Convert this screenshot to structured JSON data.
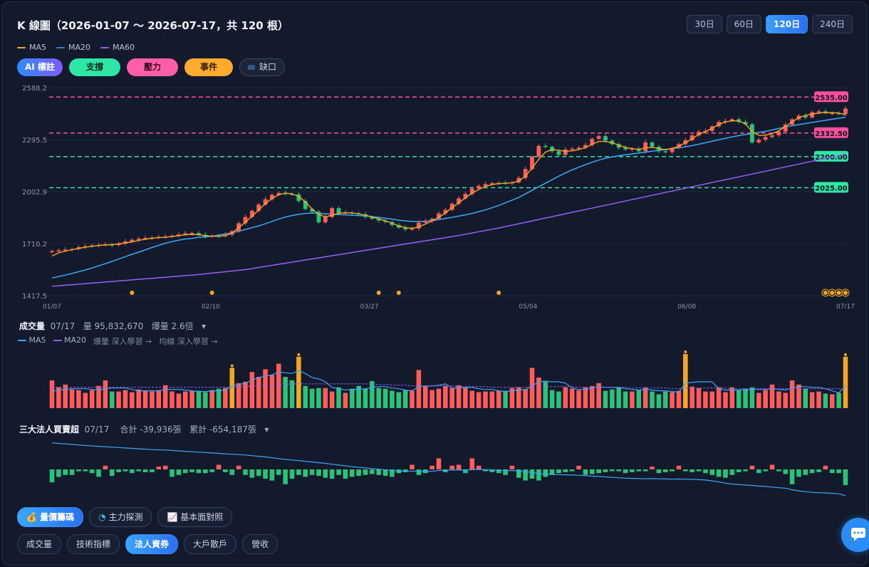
{
  "header": {
    "title": "K 線圖（2026-01-07 ～ 2026-07-17，共 120 根）"
  },
  "periods": [
    "30日",
    "60日",
    "120日",
    "240日"
  ],
  "active_period": "120日",
  "ma_legend": [
    {
      "label": "MA5",
      "color": "#f5a623"
    },
    {
      "label": "MA20",
      "color": "#3a7bd5"
    },
    {
      "label": "MA60",
      "color": "#9b5cff"
    }
  ],
  "overlay_chips": {
    "ai": "AI 標註",
    "support": "支撐",
    "pressure": "壓力",
    "event": "事件",
    "gap": "缺口"
  },
  "colors": {
    "up": "#ff5c5c",
    "down": "#2bc27a",
    "ma5": "#f5a623",
    "ma20": "#3aa8ff",
    "ma60": "#9b5cff",
    "pressure": "#ff4f9a",
    "support": "#2ee6a6",
    "event": "#f5a623"
  },
  "chart_data": [
    {
      "type": "candlestick",
      "title": "K 線圖（2026-01-07 ～ 2026-07-17，共 120 根）",
      "start_date": "2026-01-07",
      "end_date": "2026-07-17",
      "bar_count": 120,
      "ylim": [
        1417.5,
        2588.2
      ],
      "y_ticks": [
        "2588.2",
        "2295.5",
        "2002.9",
        "1710.2",
        "1417.5"
      ],
      "x_ticks": [
        "01/07",
        "02/10",
        "03/27",
        "05/04",
        "06/08",
        "07/17"
      ],
      "close": [
        1668,
        1672,
        1676,
        1680,
        1690,
        1695,
        1700,
        1702,
        1705,
        1702,
        1710,
        1722,
        1732,
        1738,
        1742,
        1745,
        1748,
        1750,
        1755,
        1762,
        1768,
        1770,
        1760,
        1750,
        1754,
        1752,
        1760,
        1780,
        1825,
        1860,
        1895,
        1930,
        1960,
        1985,
        1995,
        1990,
        1988,
        1950,
        1905,
        1890,
        1830,
        1860,
        1910,
        1880,
        1885,
        1880,
        1875,
        1860,
        1850,
        1840,
        1832,
        1815,
        1800,
        1790,
        1795,
        1828,
        1836,
        1850,
        1880,
        1900,
        1935,
        1965,
        1990,
        2020,
        2035,
        2045,
        2050,
        2052,
        2050,
        2055,
        2080,
        2130,
        2200,
        2260,
        2255,
        2230,
        2210,
        2240,
        2245,
        2250,
        2265,
        2300,
        2315,
        2290,
        2270,
        2250,
        2240,
        2245,
        2230,
        2280,
        2255,
        2230,
        2225,
        2248,
        2270,
        2292,
        2320,
        2340,
        2345,
        2370,
        2395,
        2400,
        2410,
        2395,
        2382,
        2280,
        2295,
        2310,
        2320,
        2340,
        2380,
        2410,
        2430,
        2420,
        2450,
        2455,
        2445,
        2445,
        2440,
        2470
      ],
      "ma5": [
        1640,
        1658,
        1668,
        1676,
        1683,
        1690,
        1695,
        1700,
        1703,
        1705,
        1708,
        1714,
        1720,
        1728,
        1735,
        1740,
        1744,
        1746,
        1750,
        1755,
        1760,
        1762,
        1760,
        1755,
        1752,
        1752,
        1755,
        1770,
        1800,
        1830,
        1865,
        1900,
        1935,
        1965,
        1985,
        1995,
        1990,
        1975,
        1945,
        1905,
        1875,
        1860,
        1870,
        1880,
        1885,
        1883,
        1878,
        1870,
        1860,
        1850,
        1838,
        1825,
        1810,
        1800,
        1796,
        1805,
        1820,
        1838,
        1858,
        1882,
        1912,
        1940,
        1968,
        1995,
        2015,
        2032,
        2042,
        2048,
        2050,
        2052,
        2062,
        2090,
        2135,
        2185,
        2225,
        2240,
        2235,
        2230,
        2232,
        2240,
        2250,
        2270,
        2285,
        2285,
        2278,
        2265,
        2252,
        2245,
        2240,
        2250,
        2252,
        2245,
        2238,
        2245,
        2258,
        2278,
        2300,
        2325,
        2340,
        2360,
        2380,
        2395,
        2402,
        2400,
        2385,
        2340,
        2320,
        2320,
        2330,
        2345,
        2370,
        2395,
        2420,
        2432,
        2440,
        2445,
        2448,
        2447,
        2445,
        2435
      ],
      "ma20": [
        1517,
        1525,
        1533,
        1542,
        1552,
        1562,
        1573,
        1585,
        1597,
        1610,
        1623,
        1637,
        1650,
        1662,
        1675,
        1688,
        1700,
        1712,
        1722,
        1730,
        1736,
        1740,
        1745,
        1748,
        1752,
        1758,
        1765,
        1772,
        1780,
        1790,
        1800,
        1810,
        1822,
        1835,
        1848,
        1860,
        1868,
        1875,
        1880,
        1882,
        1880,
        1878,
        1876,
        1874,
        1872,
        1870,
        1868,
        1866,
        1862,
        1858,
        1853,
        1848,
        1842,
        1838,
        1835,
        1835,
        1836,
        1840,
        1845,
        1852,
        1858,
        1865,
        1872,
        1880,
        1890,
        1900,
        1912,
        1925,
        1940,
        1955,
        1970,
        1990,
        2010,
        2030,
        2050,
        2070,
        2090,
        2108,
        2125,
        2140,
        2155,
        2168,
        2180,
        2190,
        2198,
        2205,
        2210,
        2215,
        2220,
        2225,
        2230,
        2235,
        2240,
        2245,
        2250,
        2255,
        2262,
        2270,
        2278,
        2286,
        2295,
        2303,
        2311,
        2318,
        2324,
        2330,
        2336,
        2342,
        2350,
        2358,
        2366,
        2374,
        2380,
        2386,
        2392,
        2398,
        2404,
        2410,
        2416,
        2422
      ],
      "ma60": [
        1470,
        1473,
        1476,
        1479,
        1482,
        1485,
        1488,
        1491,
        1494,
        1497,
        1500,
        1503,
        1506,
        1509,
        1512,
        1515,
        1518,
        1521,
        1524,
        1527,
        1530,
        1533,
        1536,
        1540,
        1544,
        1548,
        1552,
        1556,
        1560,
        1564,
        1570,
        1576,
        1582,
        1588,
        1594,
        1600,
        1606,
        1612,
        1618,
        1624,
        1630,
        1636,
        1642,
        1648,
        1654,
        1660,
        1666,
        1672,
        1678,
        1684,
        1690,
        1696,
        1702,
        1708,
        1714,
        1720,
        1726,
        1732,
        1738,
        1744,
        1750,
        1756,
        1763,
        1770,
        1777,
        1784,
        1791,
        1798,
        1806,
        1814,
        1822,
        1830,
        1838,
        1846,
        1854,
        1862,
        1870,
        1878,
        1886,
        1894,
        1902,
        1910,
        1918,
        1926,
        1934,
        1942,
        1950,
        1958,
        1966,
        1974,
        1982,
        1990,
        1998,
        2006,
        2014,
        2022,
        2030,
        2038,
        2046,
        2054,
        2062,
        2070,
        2078,
        2086,
        2094,
        2102,
        2110,
        2118,
        2126,
        2134,
        2142,
        2150,
        2158,
        2166,
        2174,
        2182,
        2190,
        2198,
        2206,
        2214
      ],
      "pressure_lines": [
        2535.0,
        2332.5
      ],
      "support_lines": [
        2200.0,
        2025.0
      ],
      "pressure_labels": [
        "2535.00",
        "2332.50"
      ],
      "support_labels": [
        "2200.00",
        "2025.00"
      ],
      "event_markers": [
        13,
        25,
        50,
        53,
        68,
        117,
        118,
        119,
        120
      ]
    },
    {
      "type": "bar",
      "title": "成交量",
      "date": "07/17",
      "volume_text": "量 95,832,670",
      "burst_text": "爆量 2.6倍",
      "legend": [
        "MA5",
        "MA20"
      ],
      "legend_links": [
        "爆量 深入學習 →",
        "均線 深入學習 →"
      ],
      "volume": [
        40,
        30,
        34,
        27,
        26,
        22,
        26,
        32,
        40,
        24,
        24,
        26,
        23,
        27,
        25,
        24,
        26,
        33,
        24,
        21,
        24,
        25,
        25,
        23,
        26,
        28,
        29,
        58,
        36,
        38,
        52,
        45,
        56,
        48,
        64,
        45,
        40,
        74,
        32,
        28,
        29,
        29,
        24,
        30,
        22,
        28,
        32,
        28,
        39,
        29,
        28,
        25,
        23,
        26,
        25,
        55,
        32,
        26,
        28,
        32,
        29,
        33,
        30,
        25,
        23,
        24,
        24,
        25,
        25,
        29,
        30,
        27,
        58,
        44,
        38,
        26,
        24,
        30,
        28,
        26,
        30,
        32,
        36,
        25,
        27,
        30,
        24,
        24,
        26,
        30,
        24,
        20,
        24,
        23,
        25,
        78,
        31,
        29,
        24,
        24,
        30,
        23,
        30,
        26,
        28,
        30,
        22,
        26,
        34,
        24,
        22,
        40,
        34,
        28,
        23,
        24,
        21,
        20,
        22,
        74
      ],
      "vol_ma5": [
        24,
        26,
        27,
        28,
        28,
        28,
        27,
        26,
        28,
        29,
        29,
        29,
        27,
        25,
        25,
        25,
        25,
        27,
        27,
        27,
        26,
        25,
        24,
        24,
        25,
        25,
        26,
        32,
        34,
        36,
        40,
        44,
        46,
        48,
        52,
        51,
        50,
        54,
        50,
        44,
        42,
        38,
        30,
        28,
        26,
        27,
        27,
        28,
        30,
        31,
        31,
        29,
        28,
        26,
        25,
        31,
        32,
        32,
        33,
        35,
        29,
        29,
        30,
        30,
        28,
        27,
        27,
        25,
        24,
        25,
        26,
        27,
        32,
        38,
        39,
        38,
        38,
        36,
        29,
        27,
        27,
        29,
        31,
        30,
        30,
        30,
        28,
        27,
        26,
        27,
        26,
        25,
        25,
        24,
        23,
        36,
        37,
        38,
        38,
        38,
        28,
        26,
        26,
        26,
        27,
        27,
        27,
        27,
        28,
        27,
        26,
        29,
        31,
        31,
        30,
        30,
        28,
        25,
        22,
        32
      ],
      "vol_ma20": [
        30,
        30,
        30,
        30,
        30,
        30,
        30,
        30,
        30,
        30,
        30,
        30,
        30,
        30,
        30,
        30,
        30,
        30,
        30,
        30,
        30,
        30,
        30,
        30,
        30,
        30,
        30,
        30,
        31,
        31,
        32,
        32,
        33,
        33,
        34,
        34,
        35,
        35,
        35,
        35,
        35,
        35,
        35,
        35,
        35,
        35,
        35,
        35,
        35,
        34,
        34,
        33,
        33,
        33,
        32,
        32,
        32,
        32,
        32,
        32,
        32,
        31,
        31,
        31,
        31,
        31,
        30,
        30,
        30,
        30,
        30,
        30,
        30,
        31,
        31,
        31,
        31,
        31,
        31,
        30,
        30,
        30,
        30,
        30,
        30,
        30,
        30,
        29,
        29,
        29,
        29,
        29,
        29,
        28,
        28,
        29,
        29,
        29,
        29,
        29,
        29,
        29,
        28,
        28,
        28,
        28,
        28,
        28,
        28,
        28,
        28,
        28,
        28,
        28,
        28,
        28,
        28,
        28,
        28,
        28
      ],
      "burst_days": [
        27,
        37,
        95,
        119
      ]
    },
    {
      "type": "bar",
      "title": "三大法人買賣超",
      "date": "07/17",
      "total_text": "合計 -39,936張",
      "cumulative_text": "累計 -654,187張",
      "net": [
        -14,
        -8,
        -6,
        -6,
        -2,
        -2,
        -4,
        -8,
        4,
        -7,
        -3,
        -2,
        -4,
        -2,
        -3,
        -3,
        3,
        4,
        -8,
        -6,
        -4,
        -3,
        -4,
        -4,
        -3,
        5,
        -3,
        -6,
        4,
        -6,
        -9,
        -7,
        -10,
        -12,
        -6,
        -16,
        -10,
        -6,
        -8,
        -6,
        -7,
        -9,
        -10,
        -6,
        -10,
        -8,
        -7,
        -6,
        -5,
        -6,
        -7,
        -8,
        -4,
        -3,
        5,
        -6,
        -4,
        4,
        12,
        -3,
        4,
        5,
        -4,
        12,
        4,
        -2,
        -3,
        -4,
        -6,
        4,
        -9,
        -12,
        -10,
        -12,
        -8,
        -6,
        -4,
        -3,
        -2,
        4,
        -6,
        -5,
        -4,
        -3,
        -2,
        -2,
        -4,
        -3,
        -2,
        -2,
        3,
        -4,
        -3,
        -2,
        4,
        -2,
        -3,
        -2,
        -4,
        -6,
        -8,
        -9,
        -6,
        -3,
        -2,
        4,
        -4,
        -2,
        5,
        -2,
        -5,
        -16,
        -8,
        -6,
        -4,
        -3,
        4,
        -4,
        -4,
        -17
      ],
      "cumulative": [
        -5,
        -10,
        -15,
        -20,
        -25,
        -30,
        -34,
        -38,
        -42,
        -46,
        -50,
        -54,
        -58,
        -62,
        -66,
        -70,
        -72,
        -74,
        -78,
        -82,
        -86,
        -90,
        -94,
        -98,
        -102,
        -106,
        -110,
        -114,
        -118,
        -122,
        -128,
        -134,
        -140,
        -148,
        -156,
        -164,
        -170,
        -176,
        -182,
        -188,
        -195,
        -202,
        -210,
        -218,
        -226,
        -234,
        -240,
        -246,
        -252,
        -258,
        -265,
        -272,
        -276,
        -278,
        -276,
        -278,
        -280,
        -278,
        -270,
        -268,
        -266,
        -264,
        -266,
        -262,
        -260,
        -262,
        -264,
        -268,
        -272,
        -270,
        -275,
        -282,
        -290,
        -298,
        -304,
        -308,
        -310,
        -312,
        -314,
        -316,
        -320,
        -324,
        -328,
        -332,
        -336,
        -340,
        -344,
        -346,
        -348,
        -350,
        -348,
        -350,
        -352,
        -354,
        -352,
        -354,
        -356,
        -358,
        -362,
        -370,
        -380,
        -392,
        -400,
        -406,
        -410,
        -414,
        -420,
        -424,
        -430,
        -436,
        -440,
        -456,
        -466,
        -474,
        -480,
        -484,
        -486,
        -490,
        -495,
        -512
      ]
    }
  ],
  "volume_panel": {
    "title": "成交量",
    "date": "07/17",
    "volume": "量 95,832,670",
    "burst": "爆量 2.6倍",
    "caret": "▾",
    "ma5_label": "MA5",
    "ma20_label": "MA20",
    "link1": "爆量 深入學習 →",
    "link2": "均線 深入學習 →"
  },
  "inst_panel": {
    "title": "三大法人買賣超",
    "date": "07/17",
    "total": "合計 -39,936張",
    "cumulative": "累計 -654,187張",
    "caret": "▾"
  },
  "feature_tabs": [
    {
      "label": "量價籌碼",
      "icon": "money-bag-icon",
      "glyph": "💰",
      "active": true
    },
    {
      "label": "主力探測",
      "icon": "radar-icon",
      "glyph": "◔",
      "active": false
    },
    {
      "label": "基本面對照",
      "icon": "trend-chart-icon",
      "glyph": "📈",
      "active": false
    }
  ],
  "indicator_tabs": [
    {
      "label": "成交量",
      "active": false
    },
    {
      "label": "技術指標",
      "active": false
    },
    {
      "label": "法人資券",
      "active": true
    },
    {
      "label": "大戶散戶",
      "active": false
    },
    {
      "label": "營收",
      "active": false
    }
  ],
  "chat_button": {
    "icon": "chat-bubble-icon"
  }
}
